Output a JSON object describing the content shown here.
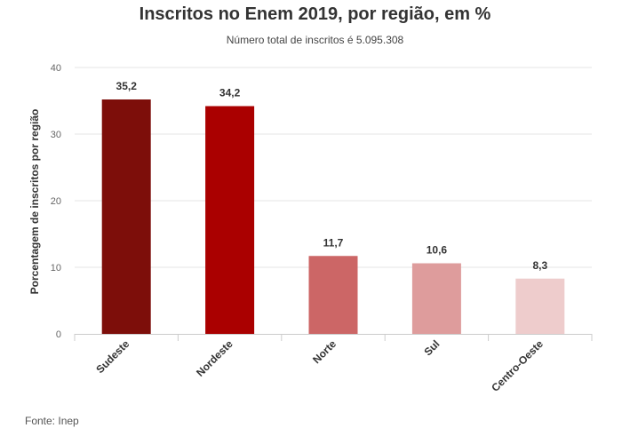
{
  "chart_data": {
    "type": "bar",
    "title": "Inscritos no Enem 2019, por região, em %",
    "subtitle": "Número total de inscritos é 5.095.308",
    "ylabel": "Porcentagem de inscritos por região",
    "xlabel": "",
    "categories": [
      "Sudeste",
      "Nordeste",
      "Norte",
      "Sul",
      "Centro-Oeste"
    ],
    "values": [
      35.2,
      34.2,
      11.7,
      10.6,
      8.3
    ],
    "value_labels": [
      "35,2",
      "34,2",
      "11,7",
      "10,6",
      "8,3"
    ],
    "colors": [
      "#7d0e0a",
      "#aa0000",
      "#cc6666",
      "#de9c9c",
      "#eecccc"
    ],
    "ylim": [
      0,
      40
    ],
    "yticks": [
      0,
      10,
      20,
      30,
      40
    ],
    "grid": true,
    "legend": "none"
  },
  "source": "Fonte: Inep"
}
